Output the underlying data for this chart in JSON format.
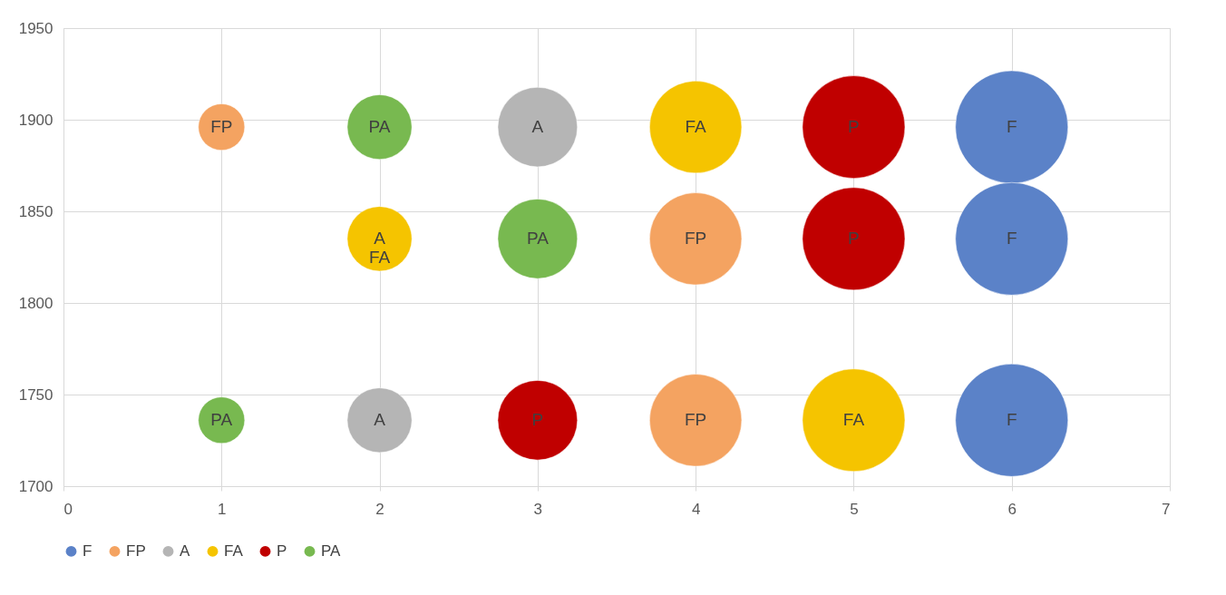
{
  "chart_data": {
    "type": "bubble",
    "xlim": [
      0,
      7
    ],
    "xticks": [
      0,
      1,
      2,
      3,
      4,
      5,
      6,
      7
    ],
    "ylim": [
      1700,
      1950
    ],
    "yticks": [
      1700,
      1750,
      1800,
      1850,
      1900,
      1950
    ],
    "grid": true,
    "legend": "bottom",
    "series": [
      {
        "name": "F",
        "color": "#5b82c8",
        "x": [
          6,
          6,
          6
        ],
        "values": [
          1896,
          1835,
          1736
        ],
        "sizes": [
          1,
          1,
          1
        ],
        "value_labels": [
          "F",
          "F",
          "F"
        ]
      },
      {
        "name": "FP",
        "color": "#f4a361",
        "x": [
          1,
          4,
          4
        ],
        "values": [
          1896,
          1835,
          1736
        ],
        "sizes": [
          0.17,
          0.67,
          0.67
        ],
        "value_labels": [
          "FP",
          "FP",
          "FP"
        ]
      },
      {
        "name": "A",
        "color": "#b5b5b5",
        "x": [
          3,
          2
        ],
        "values": [
          1896,
          1736
        ],
        "sizes": [
          0.5,
          0.33
        ],
        "value_labels": [
          "A",
          "A"
        ]
      },
      {
        "name": "FA",
        "color": "#f5c400",
        "x": [
          4,
          2,
          5
        ],
        "values": [
          1896,
          1835,
          1736
        ],
        "sizes": [
          0.67,
          0.33,
          0.83
        ],
        "value_labels": [
          "FA",
          "A\nFA",
          "FA"
        ]
      },
      {
        "name": "P",
        "color": "#c00000",
        "x": [
          5,
          5,
          3
        ],
        "values": [
          1896,
          1835,
          1736
        ],
        "sizes": [
          0.83,
          0.83,
          0.5
        ],
        "value_labels": [
          "P",
          "P",
          "P"
        ]
      },
      {
        "name": "PA",
        "color": "#78b950",
        "x": [
          2,
          3,
          1
        ],
        "values": [
          1896,
          1835,
          1736
        ],
        "sizes": [
          0.33,
          0.5,
          0.17
        ],
        "value_labels": [
          "PA",
          "PA",
          "PA"
        ]
      }
    ]
  }
}
